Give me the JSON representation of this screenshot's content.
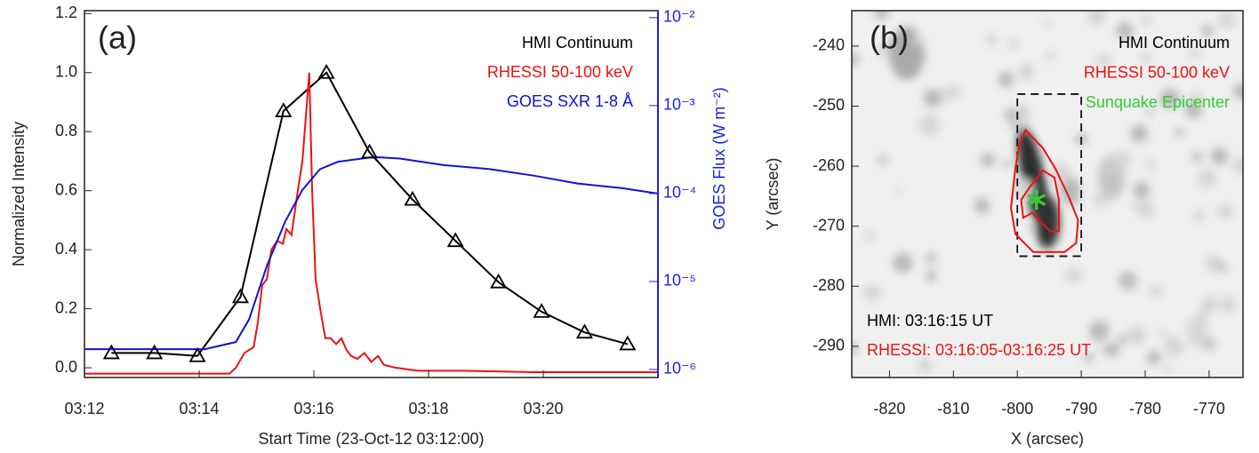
{
  "chart_data": [
    {
      "type": "line",
      "label": "(a)",
      "x_label": "Start Time (23-Oct-12 03:12:00)",
      "y_label": "Normalized Intensity",
      "y2_label": "GOES Flux (W m⁻²)",
      "xlim": [
        0,
        10
      ],
      "xticks": [
        {
          "value": 0,
          "label": "03:12"
        },
        {
          "value": 2,
          "label": "03:14"
        },
        {
          "value": 4,
          "label": "03:16"
        },
        {
          "value": 6,
          "label": "03:18"
        },
        {
          "value": 8,
          "label": "03:20"
        }
      ],
      "ylim": [
        -0.033,
        1.21
      ],
      "yticks": [
        {
          "value": 0,
          "label": "0.0"
        },
        0.2,
        0.4,
        0.6,
        0.8,
        {
          "value": 1,
          "label": "1.0"
        },
        1.2
      ],
      "y2lim": [
        8.1e-07,
        0.012
      ],
      "y2_log": true,
      "y2_color": "#2020e0",
      "y2ticks": [
        {
          "value": 1e-06,
          "label": "10⁻⁶"
        },
        {
          "value": 1e-05,
          "label": "10⁻⁵"
        },
        {
          "value": 0.0001,
          "label": "10⁻⁴"
        },
        {
          "value": 0.001,
          "label": "10⁻³"
        },
        {
          "value": 0.01,
          "label": "10⁻²"
        }
      ],
      "legend": "upper right",
      "series": [
        {
          "name": "HMI Continuum",
          "color": "#000000",
          "marker": "triangle",
          "x": [
            0.47,
            1.22,
            1.97,
            2.72,
            3.47,
            4.22,
            4.97,
            5.72,
            6.47,
            7.22,
            7.97,
            8.72,
            9.47
          ],
          "values": [
            0.05,
            0.05,
            0.04,
            0.24,
            0.87,
            1.0,
            0.73,
            0.57,
            0.43,
            0.29,
            0.19,
            0.12,
            0.08
          ]
        },
        {
          "name": "RHESSI 50-100 keV",
          "color": "#ee1111",
          "x": [
            0,
            2.53,
            2.64,
            2.79,
            2.95,
            3.02,
            3.1,
            3.18,
            3.26,
            3.36,
            3.46,
            3.52,
            3.61,
            3.72,
            3.8,
            3.86,
            3.92,
            3.97,
            4.03,
            4.11,
            4.2,
            4.29,
            4.39,
            4.48,
            4.57,
            4.65,
            4.76,
            4.88,
            5.0,
            5.12,
            5.22,
            5.43,
            5.81,
            6.59,
            7.83,
            10
          ],
          "values": [
            -0.02,
            -0.02,
            0.0,
            0.05,
            0.07,
            0.15,
            0.28,
            0.3,
            0.4,
            0.43,
            0.42,
            0.47,
            0.45,
            0.6,
            0.7,
            0.85,
            1.0,
            0.6,
            0.3,
            0.2,
            0.1,
            0.1,
            0.08,
            0.1,
            0.06,
            0.04,
            0.03,
            0.05,
            0.02,
            0.04,
            0.01,
            0.0,
            -0.01,
            -0.01,
            -0.015,
            -0.015
          ]
        },
        {
          "name": "GOES SXR 1-8 Å",
          "color": "#1010dd",
          "axis": "y2",
          "x": [
            0,
            2.1,
            2.64,
            2.87,
            3.18,
            3.5,
            3.8,
            4.11,
            4.42,
            5.04,
            5.5,
            6.28,
            7.05,
            7.83,
            8.6,
            9.38,
            10
          ],
          "values": [
            1.7e-06,
            1.7e-06,
            2.05e-06,
            3.7e-06,
            1.5e-05,
            4.8e-05,
            0.00011,
            0.00019,
            0.00023,
            0.00026,
            0.00025,
            0.00021,
            0.00019,
            0.00016,
            0.00013,
            0.000115,
            0.0001
          ]
        }
      ]
    },
    {
      "type": "contour",
      "label": "(b)",
      "x_label": "X (arcsec)",
      "y_label": "Y (arcsec)",
      "xlim": [
        -825.9,
        -764.7
      ],
      "xticks": [
        -820,
        -810,
        -800,
        -790,
        -780,
        -770
      ],
      "ylim": [
        -295.2,
        -234.1
      ],
      "yticks": [
        -240,
        -250,
        -260,
        -270,
        -280,
        -290
      ],
      "legend": "upper right",
      "box": {
        "x": [
          -800,
          -790
        ],
        "y": [
          -248,
          -275
        ]
      },
      "series": [
        {
          "name": "HMI Continuum",
          "color": "#000000"
        },
        {
          "name": "RHESSI 50-100 keV",
          "color": "#ee1111",
          "contours": [
            {
              "x": [
                -798.7,
                -796,
                -794,
                -792,
                -790.5,
                -790.8,
                -792.6,
                -797.5,
                -800.3,
                -801,
                -800.3,
                -799.6
              ],
              "y": [
                -254,
                -257,
                -260.5,
                -265,
                -269,
                -272.8,
                -274.3,
                -274.3,
                -271.3,
                -267,
                -260.3,
                -256
              ]
            },
            {
              "x": [
                -796,
                -794.2,
                -793.5,
                -793.5,
                -794.9,
                -796.3,
                -797.7,
                -799.1,
                -799.4,
                -798
              ],
              "y": [
                -260.7,
                -261.9,
                -265.6,
                -270.8,
                -270.8,
                -269.3,
                -267.8,
                -268.6,
                -265.6,
                -263.4
              ]
            }
          ]
        },
        {
          "name": "Sunquake Epicenter",
          "color": "#33cc33",
          "marker": "asterisk",
          "x": [
            -797
          ],
          "y": [
            -265.6
          ]
        }
      ],
      "annotations": [
        {
          "text": "HMI: 03:16:15 UT",
          "color": "#000000"
        },
        {
          "text": "RHESSI: 03:16:05-03:16:25 UT",
          "color": "#ee1111"
        }
      ]
    }
  ]
}
